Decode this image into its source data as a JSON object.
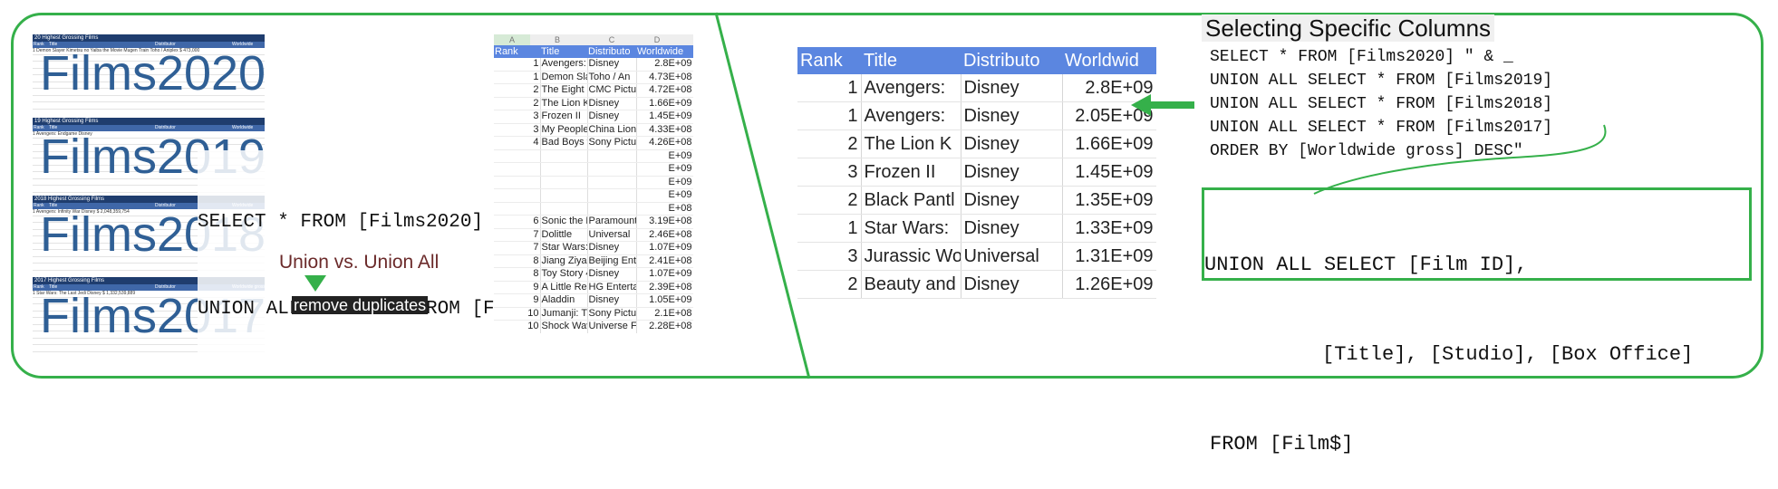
{
  "left_panel": {
    "thumbnails": [
      {
        "caption": "20 Highest Grossing Films",
        "headers": [
          "Rank",
          "Title",
          "Distributor",
          "Worldwide"
        ],
        "first_row": "1  Demon Slayer Kimetsu no Yaiba the Movie Mugen Train  Toho / Aniplex   $  473,000",
        "big_label": "Films2020"
      },
      {
        "caption": "19 Highest Grossing Films",
        "headers": [
          "Rank",
          "Title",
          "Distributor",
          "Worldwide"
        ],
        "first_row": "1  Avengers: Endgame   Disney",
        "big_label": "Films2019"
      },
      {
        "caption": "2018 Highest Grossing Films",
        "headers": [
          "Rank",
          "Title",
          "Distributor",
          "Worldwide"
        ],
        "first_row": "1  Avengers: Infinity War   Disney   $ 2,048,359,754",
        "big_label": "Films2018"
      },
      {
        "caption": "2017 Highest Grossing Films",
        "headers": [
          "Rank",
          "Title",
          "Distributor",
          "Worldwide gross"
        ],
        "first_row": "1  Star Wars: The Last Jedi   Disney   $ 1,332,539,889",
        "big_label": "Films2017"
      }
    ],
    "sql_line1": "SELECT * FROM [Films2020] \" & _",
    "sql_line2": "UNION ALL SELECT * FROM [Films2019]",
    "union_label": "Union vs. Union All",
    "remove_label": "remove duplicates",
    "mini_sheet": {
      "col_letters": [
        "A",
        "B",
        "C",
        "D"
      ],
      "headers": [
        "Rank",
        "Title",
        "Distributo",
        "Worldwide"
      ],
      "rows": [
        [
          "1",
          "Avengers:",
          "Disney",
          "2.8E+09"
        ],
        [
          "1",
          "Demon Sla",
          "Toho / An",
          "4.73E+08"
        ],
        [
          "2",
          "The Eight",
          "CMC Pictu",
          "4.72E+08"
        ],
        [
          "2",
          "The Lion K",
          "Disney",
          "1.66E+09"
        ],
        [
          "3",
          "Frozen II",
          "Disney",
          "1.45E+09"
        ],
        [
          "3",
          "My People",
          "China Lion",
          "4.33E+08"
        ],
        [
          "4",
          "Bad Boys f",
          "Sony Pictu",
          "4.26E+08"
        ],
        [
          "",
          "",
          "",
          "E+09"
        ],
        [
          "",
          "",
          "",
          "E+09"
        ],
        [
          "",
          "",
          "",
          "E+09"
        ],
        [
          "",
          "",
          "",
          "E+09"
        ],
        [
          "",
          "",
          "",
          "E+08"
        ],
        [
          "6",
          "Sonic the H",
          "Paramount",
          "3.19E+08"
        ],
        [
          "7",
          "Dolittle",
          "Universal",
          "2.46E+08"
        ],
        [
          "7",
          "Star Wars:",
          "Disney",
          "1.07E+09"
        ],
        [
          "8",
          "Jiang Ziya",
          "Beijing Ent",
          "2.41E+08"
        ],
        [
          "8",
          "Toy Story 4",
          "Disney",
          "1.07E+09"
        ],
        [
          "9",
          "A Little Re",
          "HG Enterta",
          "2.39E+08"
        ],
        [
          "9",
          "Aladdin",
          "Disney",
          "1.05E+09"
        ],
        [
          "10",
          "Jumanji: T",
          "Sony Pictu",
          "2.1E+08"
        ],
        [
          "10",
          "Shock Wav",
          "Universe F",
          "2.28E+08"
        ]
      ]
    }
  },
  "right_panel": {
    "heading": "Selecting Specific Columns",
    "code_lines": [
      "SELECT * FROM [Films2020] \" & _",
      "UNION ALL SELECT * FROM [Films2019]",
      "UNION ALL SELECT * FROM [Films2018]",
      "UNION ALL SELECT * FROM [Films2017]",
      "ORDER BY [Worldwide gross] DESC\""
    ],
    "box_lines": [
      "UNION ALL SELECT [Film ID],",
      "[Title], [Studio], [Box Office]",
      "FROM [Film$]"
    ],
    "result_sheet": {
      "headers": [
        "Rank",
        "Title",
        "Distributo",
        "Worldwid"
      ],
      "rows": [
        [
          "1",
          "Avengers:",
          "Disney",
          "2.8E+09"
        ],
        [
          "1",
          "Avengers:",
          "Disney",
          "2.05E+09"
        ],
        [
          "2",
          "The Lion K",
          "Disney",
          "1.66E+09"
        ],
        [
          "3",
          "Frozen II",
          "Disney",
          "1.45E+09"
        ],
        [
          "2",
          "Black Pantl",
          "Disney",
          "1.35E+09"
        ],
        [
          "1",
          "Star Wars:",
          "Disney",
          "1.33E+09"
        ],
        [
          "3",
          "Jurassic Wo",
          "Universal",
          "1.31E+09"
        ],
        [
          "2",
          "Beauty and",
          "Disney",
          "1.26E+09"
        ]
      ]
    }
  },
  "colors": {
    "frame": "#35b04a",
    "header_blue": "#5b86e0",
    "label_blue": "#2f5f95",
    "union_text": "#6b2a2a"
  }
}
